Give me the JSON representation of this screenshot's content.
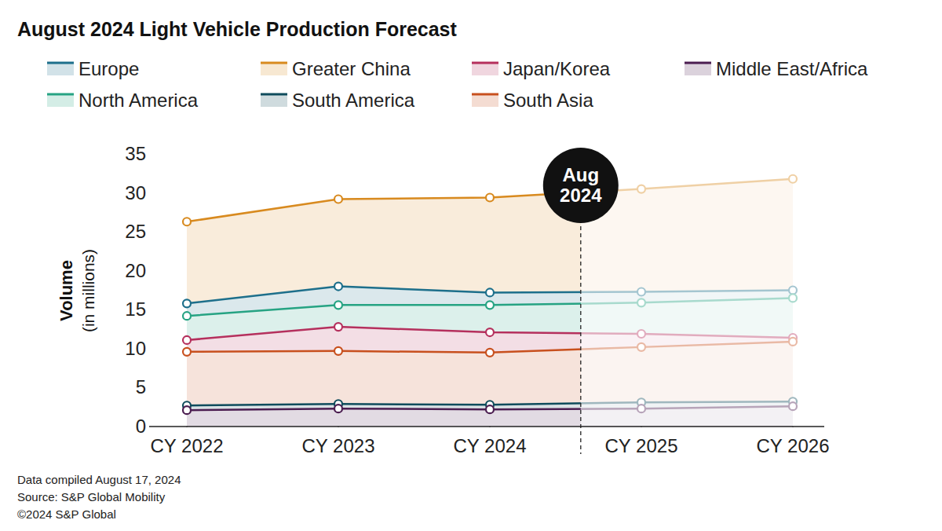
{
  "chart_data": {
    "type": "area",
    "title": "August 2024 Light Vehicle Production Forecast",
    "ylabel": "Volume",
    "ylabel_note": "(in millions)",
    "x": [
      2022,
      2023,
      2024,
      2025,
      2026
    ],
    "xlim": [
      2022,
      2026
    ],
    "xticks": [
      {
        "value": 2022,
        "label": "CY 2022"
      },
      {
        "value": 2023,
        "label": "CY 2023"
      },
      {
        "value": 2024,
        "label": "CY 2024"
      },
      {
        "value": 2025,
        "label": "CY 2025"
      },
      {
        "value": 2026,
        "label": "CY 2026"
      }
    ],
    "ylim": [
      0,
      35
    ],
    "yticks": [
      0,
      5,
      10,
      15,
      20,
      25,
      30,
      35
    ],
    "grid": false,
    "legend": "top",
    "marker": "circle",
    "series": [
      {
        "name": "Europe",
        "color": "#1d6f8b",
        "values": [
          15.8,
          18.0,
          17.2,
          17.3,
          17.5
        ]
      },
      {
        "name": "Greater China",
        "color": "#d88a1f",
        "values": [
          26.3,
          29.2,
          29.4,
          30.5,
          31.8
        ]
      },
      {
        "name": "Japan/Korea",
        "color": "#b5305d",
        "values": [
          11.1,
          12.8,
          12.1,
          11.9,
          11.4
        ]
      },
      {
        "name": "Middle East/Africa",
        "color": "#4b1d50",
        "values": [
          2.1,
          2.3,
          2.2,
          2.3,
          2.6
        ]
      },
      {
        "name": "North America",
        "color": "#26a383",
        "values": [
          14.2,
          15.6,
          15.6,
          15.9,
          16.5
        ]
      },
      {
        "name": "South America",
        "color": "#0f4c5c",
        "values": [
          2.7,
          2.9,
          2.8,
          3.1,
          3.2
        ]
      },
      {
        "name": "South Asia",
        "color": "#c8501e",
        "values": [
          9.6,
          9.7,
          9.5,
          10.2,
          10.9
        ]
      }
    ],
    "annotations": [
      {
        "text": "Aug 2024",
        "x": 2024.6
      }
    ],
    "footnotes": [
      "Data compiled August 17, 2024",
      "Source: S&P Global Mobility",
      "©2024 S&P Global"
    ]
  }
}
